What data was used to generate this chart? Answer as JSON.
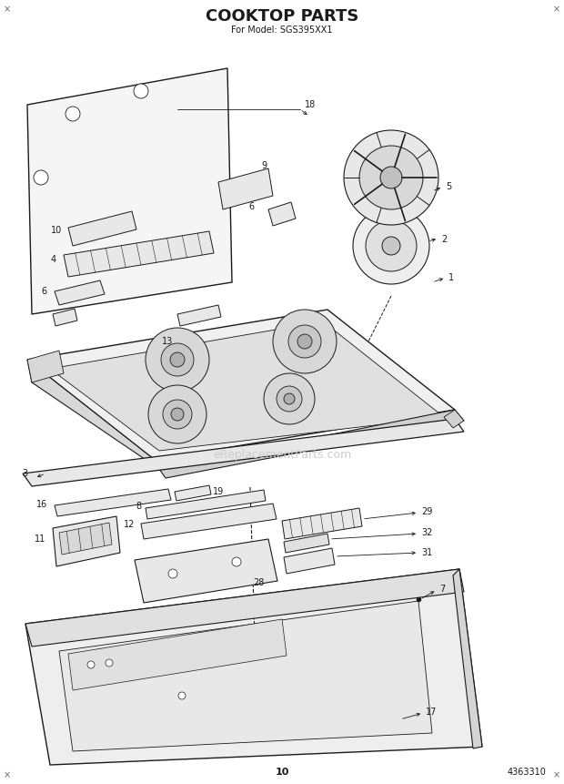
{
  "title": "COOKTOP PARTS",
  "subtitle": "For Model: SGS395XX1",
  "page_number": "10",
  "doc_number": "4363310",
  "bg_color": "#ffffff",
  "line_color": "#1a1a1a",
  "text_color": "#1a1a1a",
  "watermark": "eReplacementParts.com",
  "fig_w": 6.2,
  "fig_h": 8.61,
  "dpi": 100
}
